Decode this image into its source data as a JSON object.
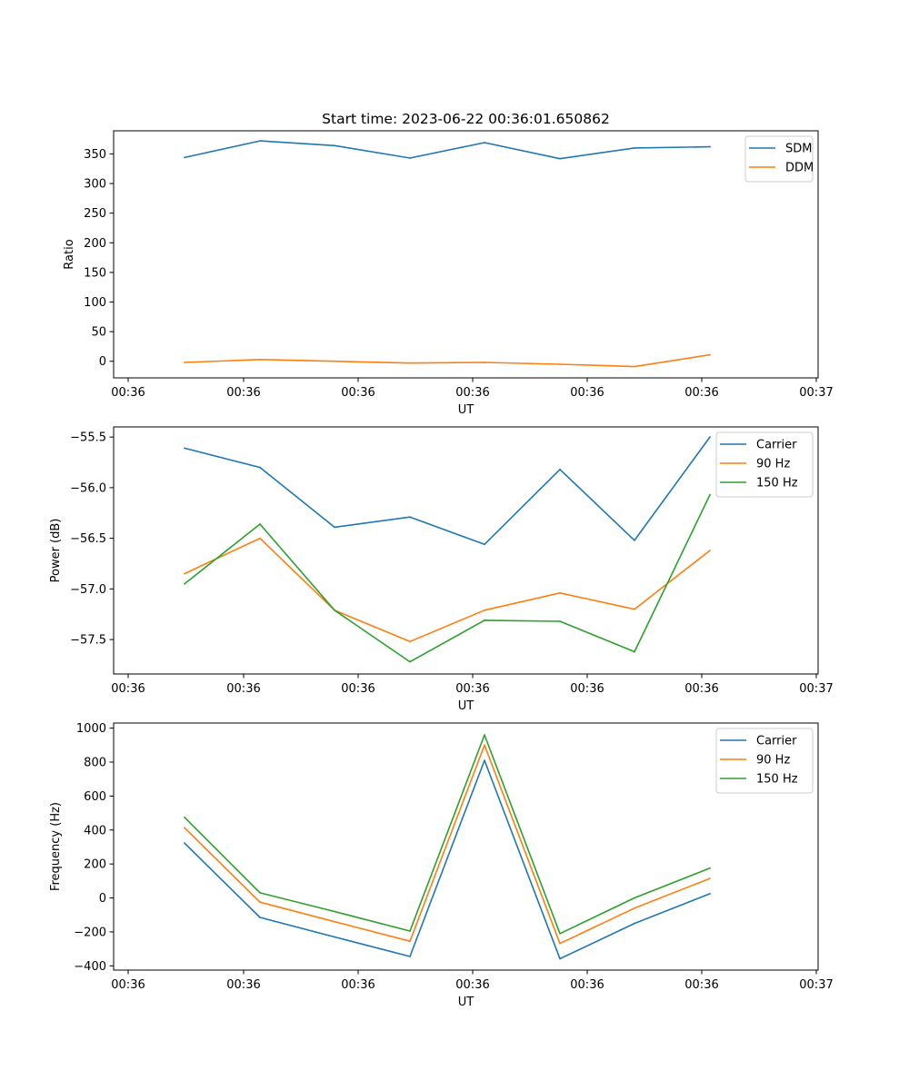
{
  "title": "Start time: 2023-06-22 00:36:01.650862",
  "chart_data": [
    {
      "type": "line",
      "xlabel": "UT",
      "ylabel": "Ratio",
      "xticks": [
        "00:36",
        "00:36",
        "00:36",
        "00:36",
        "00:36",
        "00:36",
        "00:37"
      ],
      "yticks": [
        "0",
        "50",
        "100",
        "150",
        "200",
        "250",
        "300",
        "350"
      ],
      "ylim": [
        -28,
        389
      ],
      "legend_position": "upper right",
      "series": [
        {
          "name": "SDM",
          "color": "#1f77b4",
          "values": [
            344,
            372,
            364,
            343,
            369,
            342,
            360,
            362
          ]
        },
        {
          "name": "DDM",
          "color": "#ff7f0e",
          "values": [
            -2,
            3,
            0,
            -3,
            -2,
            -5,
            -9,
            11
          ]
        }
      ]
    },
    {
      "type": "line",
      "xlabel": "UT",
      "ylabel": "Power (dB)",
      "xticks": [
        "00:36",
        "00:36",
        "00:36",
        "00:36",
        "00:36",
        "00:36",
        "00:37"
      ],
      "yticks": [
        "−57.5",
        "−57.0",
        "−56.5",
        "−56.0",
        "−55.5"
      ],
      "ylim": [
        -57.84,
        -55.4
      ],
      "legend_position": "upper right",
      "series": [
        {
          "name": "Carrier",
          "color": "#1f77b4",
          "values": [
            -55.61,
            -55.8,
            -56.39,
            -56.29,
            -56.56,
            -55.82,
            -56.52,
            -55.5
          ]
        },
        {
          "name": "90 Hz",
          "color": "#ff7f0e",
          "values": [
            -56.85,
            -56.5,
            -57.21,
            -57.52,
            -57.21,
            -57.04,
            -57.2,
            -56.62
          ]
        },
        {
          "name": "150 Hz",
          "color": "#2ca02c",
          "values": [
            -56.95,
            -56.36,
            -57.21,
            -57.72,
            -57.31,
            -57.32,
            -57.62,
            -56.07
          ]
        }
      ]
    },
    {
      "type": "line",
      "xlabel": "UT",
      "ylabel": "Frequency (Hz)",
      "xticks": [
        "00:36",
        "00:36",
        "00:36",
        "00:36",
        "00:36",
        "00:36",
        "00:37"
      ],
      "yticks": [
        "−400",
        "−200",
        "0",
        "200",
        "400",
        "600",
        "800",
        "1000"
      ],
      "ylim": [
        -425,
        1030
      ],
      "legend_position": "upper right",
      "series": [
        {
          "name": "Carrier",
          "color": "#1f77b4",
          "values": [
            323,
            -115,
            -230,
            -345,
            810,
            -358,
            -150,
            25
          ]
        },
        {
          "name": "90 Hz",
          "color": "#ff7f0e",
          "values": [
            413,
            -25,
            -140,
            -255,
            900,
            -268,
            -60,
            115
          ]
        },
        {
          "name": "150 Hz",
          "color": "#2ca02c",
          "values": [
            475,
            30,
            -80,
            -195,
            960,
            -210,
            0,
            175
          ]
        }
      ]
    }
  ]
}
